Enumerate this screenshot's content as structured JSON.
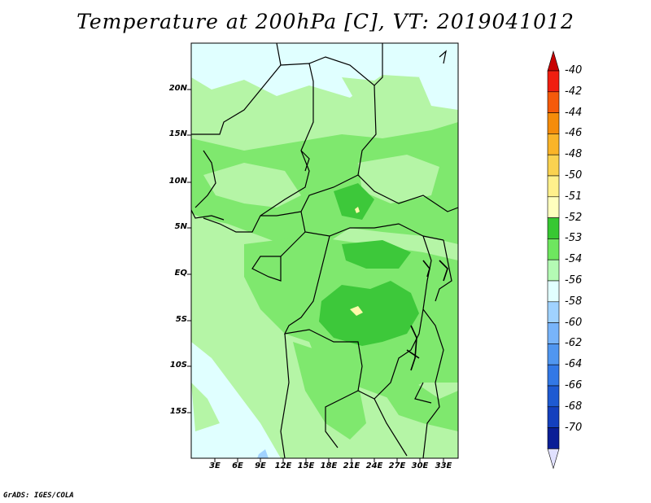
{
  "title": "Temperature at 200hPa [C], VT: 2019041012",
  "credit": "GrADS: IGES/COLA",
  "colors": {
    "frame": "#000000",
    "land_light": "#b5f5a6",
    "land_mid": "#7fe86e",
    "land_dark": "#3dc83a",
    "pale": "#e0ffff",
    "yellow": "#fffaaa",
    "blue_light": "#a0d2ff"
  },
  "map": {
    "lat_labels": [
      "20N",
      "15N",
      "10N",
      "5N",
      "EQ",
      "5S",
      "10S",
      "15S"
    ],
    "lon_labels": [
      "3E",
      "6E",
      "9E",
      "12E",
      "15E",
      "18E",
      "21E",
      "24E",
      "27E",
      "30E",
      "33E"
    ]
  },
  "colorbar": {
    "levels": [
      {
        "label": "-40",
        "color": "#f01e10"
      },
      {
        "label": "-42",
        "color": "#f55a0a"
      },
      {
        "label": "-44",
        "color": "#f58c0a"
      },
      {
        "label": "-46",
        "color": "#fab428"
      },
      {
        "label": "-48",
        "color": "#fad250"
      },
      {
        "label": "-50",
        "color": "#fff08c"
      },
      {
        "label": "-51",
        "color": "#ffffbe"
      },
      {
        "label": "-52",
        "color": "#37c832"
      },
      {
        "label": "-53",
        "color": "#6ee65f"
      },
      {
        "label": "-54",
        "color": "#b4fab4"
      },
      {
        "label": "-56",
        "color": "#e1ffff"
      },
      {
        "label": "-58",
        "color": "#a0d2ff"
      },
      {
        "label": "-60",
        "color": "#78b4fa"
      },
      {
        "label": "-62",
        "color": "#5096f0"
      },
      {
        "label": "-64",
        "color": "#3278e6"
      },
      {
        "label": "-66",
        "color": "#1e5ad2"
      },
      {
        "label": "-68",
        "color": "#1440be"
      },
      {
        "label": "-70",
        "color": "#0a1e96"
      }
    ],
    "top_arrow_color": "#c80000",
    "bottom_arrow_color": "#e1e1ff"
  }
}
